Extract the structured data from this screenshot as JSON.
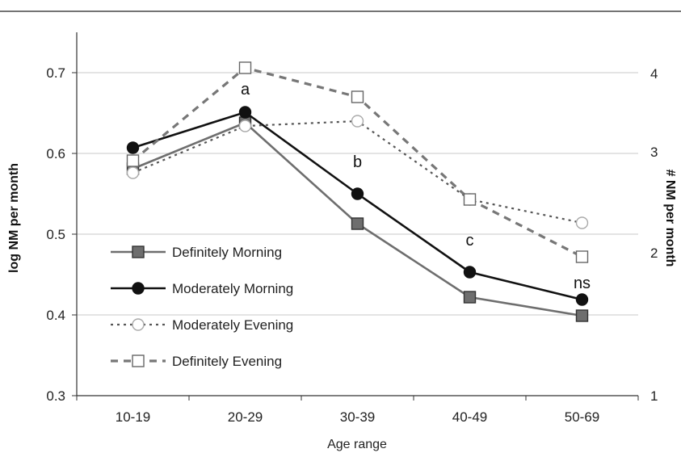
{
  "chart_data": {
    "type": "line",
    "xlabel": "Age range",
    "ylabel": "log NM per month",
    "y2label": "# NM per month",
    "categories": [
      "10-19",
      "20-29",
      "30-39",
      "40-49",
      "50-69"
    ],
    "ylim": [
      0.3,
      0.75
    ],
    "yticks": [
      0.3,
      0.4,
      0.5,
      0.6,
      0.7
    ],
    "y2ticks": [
      "1",
      "2",
      "3",
      "4"
    ],
    "y2tick_values": [
      0.3,
      0.4771,
      0.6021,
      0.699
    ],
    "grid": "horizontal",
    "legend_position": "center-left",
    "series": [
      {
        "name": "Definitely Morning",
        "values": [
          0.581,
          0.638,
          0.513,
          0.422,
          0.399
        ],
        "color": "#6e6e6e",
        "marker": "square",
        "marker_fill": "#6e6e6e",
        "dash": "solid"
      },
      {
        "name": "Moderately Morning",
        "values": [
          0.607,
          0.651,
          0.55,
          0.453,
          0.419
        ],
        "color": "#111111",
        "marker": "circle",
        "marker_fill": "#111111",
        "dash": "solid"
      },
      {
        "name": "Moderately Evening",
        "values": [
          0.576,
          0.634,
          0.64,
          0.543,
          0.514
        ],
        "color": "#555555",
        "marker": "circle",
        "marker_fill": "#ffffff",
        "dash": "short"
      },
      {
        "name": "Definitely Evening",
        "values": [
          0.591,
          0.706,
          0.67,
          0.543,
          0.472
        ],
        "color": "#777777",
        "marker": "square",
        "marker_fill": "#ffffff",
        "dash": "long"
      }
    ],
    "annotations": [
      {
        "text": "a",
        "category": "20-29",
        "y": 0.673
      },
      {
        "text": "b",
        "category": "30-39",
        "y": 0.583
      },
      {
        "text": "c",
        "category": "40-49",
        "y": 0.486
      },
      {
        "text": "ns",
        "category": "50-69",
        "y": 0.433
      }
    ]
  }
}
